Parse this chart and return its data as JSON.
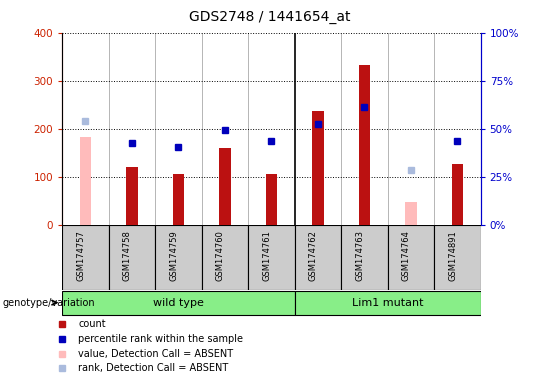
{
  "title": "GDS2748 / 1441654_at",
  "samples": [
    "GSM174757",
    "GSM174758",
    "GSM174759",
    "GSM174760",
    "GSM174761",
    "GSM174762",
    "GSM174763",
    "GSM174764",
    "GSM174891"
  ],
  "count_values": [
    null,
    120,
    105,
    160,
    105,
    237,
    332,
    null,
    127
  ],
  "count_absent_values": [
    183,
    null,
    null,
    null,
    null,
    null,
    null,
    48,
    null
  ],
  "percentile_values": [
    null,
    170,
    162,
    197,
    175,
    210,
    245,
    null,
    175
  ],
  "percentile_absent_values": [
    215,
    null,
    null,
    null,
    null,
    null,
    null,
    113,
    null
  ],
  "groups": [
    {
      "label": "wild type",
      "indices": [
        0,
        1,
        2,
        3,
        4
      ]
    },
    {
      "label": "Lim1 mutant",
      "indices": [
        5,
        6,
        7,
        8
      ]
    }
  ],
  "ylim_left": [
    0,
    400
  ],
  "ylim_right": [
    0,
    100
  ],
  "yticks_left": [
    0,
    100,
    200,
    300,
    400
  ],
  "ytick_labels_left": [
    "0",
    "100",
    "200",
    "300",
    "400"
  ],
  "yticks_right": [
    0,
    25,
    50,
    75,
    100
  ],
  "ytick_labels_right": [
    "0%",
    "25%",
    "50%",
    "75%",
    "100%"
  ],
  "bar_width": 0.25,
  "bar_color_present": "#bb1111",
  "bar_color_absent": "#ffbbbb",
  "marker_color_present": "#0000bb",
  "marker_color_absent": "#aabbdd",
  "background_color": "#ffffff",
  "left_axis_color": "#cc2200",
  "right_axis_color": "#0000cc",
  "group_bg_color": "#88ee88",
  "xticklabel_area_color": "#cccccc",
  "legend_items": [
    {
      "label": "count",
      "color": "#bb1111"
    },
    {
      "label": "percentile rank within the sample",
      "color": "#0000bb"
    },
    {
      "label": "value, Detection Call = ABSENT",
      "color": "#ffbbbb"
    },
    {
      "label": "rank, Detection Call = ABSENT",
      "color": "#aabbdd"
    }
  ],
  "genotype_label": "genotype/variation"
}
